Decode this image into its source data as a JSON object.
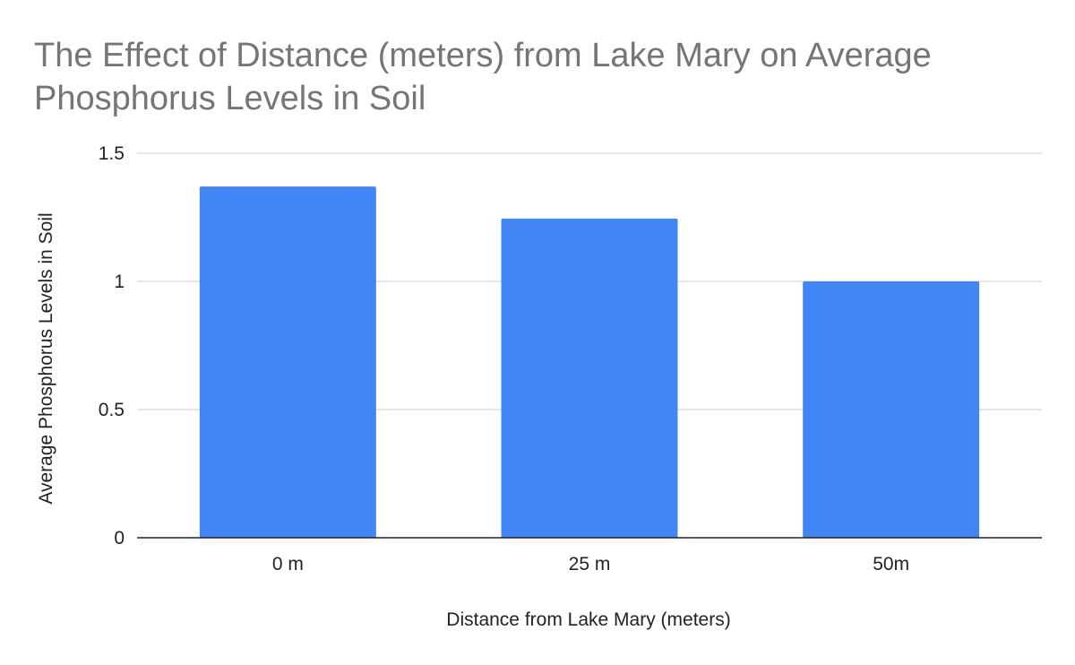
{
  "chart_data": {
    "type": "bar",
    "title": "The Effect of Distance (meters) from Lake Mary on Average Phosphorus Levels in Soil",
    "xlabel": "Distance from Lake Mary (meters)",
    "ylabel": "Average Phosphorus Levels in Soil",
    "categories": [
      "0 m",
      "25 m",
      "50m"
    ],
    "series": [
      {
        "values": [
          1.37,
          1.245,
          1.0
        ]
      }
    ],
    "ylim": [
      0,
      1.5
    ],
    "yticks": [
      0,
      0.5,
      1,
      1.5
    ],
    "ytick_labels": [
      "0",
      "0.5",
      "1",
      "1.5"
    ],
    "grid": true,
    "legend": "none",
    "colors": {
      "bar": "#4285f4",
      "grid": "#cccccc",
      "axis": "#222222",
      "title": "#757575"
    }
  }
}
